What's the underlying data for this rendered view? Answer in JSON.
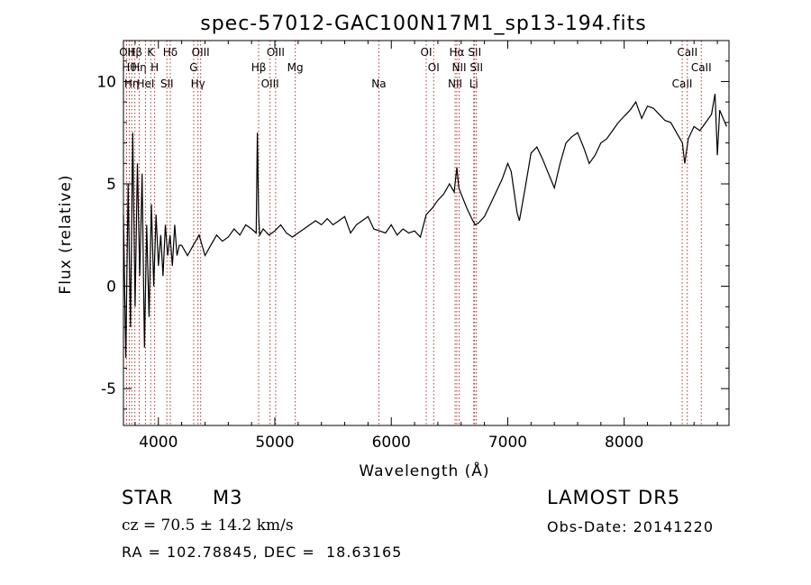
{
  "chart_data": {
    "type": "line",
    "title": "spec-57012-GAC100N17M1_sp13-194.fits",
    "xlabel": "Wavelength (Å)",
    "ylabel": "Flux (relative)",
    "xlim": [
      3700,
      8900
    ],
    "ylim": [
      -6.8,
      12.0
    ],
    "xticks": [
      4000,
      5000,
      6000,
      7000,
      8000
    ],
    "yticks": [
      -5,
      0,
      5,
      10
    ],
    "grid": false,
    "series": [
      {
        "x": [
          3700,
          3720,
          3740,
          3760,
          3780,
          3800,
          3820,
          3840,
          3860,
          3880,
          3900,
          3920,
          3940,
          3960,
          3980,
          4000,
          4020,
          4040,
          4060,
          4080,
          4100,
          4120,
          4140,
          4160,
          4180,
          4200,
          4250,
          4300,
          4350,
          4400,
          4450,
          4500,
          4550,
          4600,
          4650,
          4700,
          4750,
          4800,
          4840,
          4850,
          4861,
          4870,
          4900,
          4950,
          5000,
          5050,
          5100,
          5150,
          5200,
          5250,
          5300,
          5350,
          5400,
          5450,
          5500,
          5550,
          5600,
          5650,
          5700,
          5750,
          5800,
          5850,
          5900,
          5950,
          6000,
          6050,
          6100,
          6150,
          6200,
          6250,
          6300,
          6350,
          6400,
          6450,
          6500,
          6540,
          6563,
          6580,
          6600,
          6650,
          6700,
          6720,
          6750,
          6800,
          6850,
          6900,
          6950,
          7000,
          7030,
          7050,
          7080,
          7100,
          7150,
          7200,
          7250,
          7300,
          7350,
          7400,
          7450,
          7500,
          7550,
          7600,
          7650,
          7700,
          7750,
          7800,
          7850,
          7900,
          7950,
          8000,
          8050,
          8100,
          8150,
          8200,
          8250,
          8300,
          8350,
          8400,
          8450,
          8500,
          8520,
          8550,
          8600,
          8650,
          8700,
          8750,
          8780,
          8800,
          8820,
          8850,
          8880
        ],
        "y": [
          3.5,
          -3.5,
          5.0,
          -2.0,
          7.5,
          -1.0,
          6.0,
          0.5,
          5.5,
          -3.0,
          3.0,
          -1.5,
          4.0,
          0.0,
          3.5,
          1.0,
          2.5,
          0.5,
          3.0,
          1.5,
          2.5,
          1.0,
          3.0,
          1.5,
          2.0,
          2.0,
          1.5,
          2.0,
          2.5,
          1.5,
          2.0,
          2.5,
          2.2,
          2.4,
          2.8,
          2.5,
          3.0,
          2.8,
          2.6,
          7.5,
          3.5,
          2.5,
          2.8,
          2.5,
          2.7,
          3.0,
          2.6,
          2.4,
          2.6,
          2.8,
          3.0,
          3.2,
          3.0,
          3.3,
          3.0,
          3.2,
          3.4,
          2.6,
          3.0,
          3.2,
          3.4,
          2.8,
          2.7,
          2.6,
          3.0,
          2.5,
          2.8,
          2.6,
          2.7,
          2.4,
          3.5,
          3.8,
          4.2,
          4.5,
          5.0,
          4.6,
          5.8,
          4.8,
          4.5,
          3.8,
          3.2,
          3.0,
          3.1,
          3.4,
          4.0,
          4.6,
          5.2,
          6.0,
          5.6,
          4.8,
          3.6,
          3.2,
          4.8,
          6.5,
          6.8,
          6.2,
          5.5,
          4.8,
          6.0,
          7.0,
          7.3,
          7.5,
          6.8,
          6.0,
          6.4,
          7.0,
          7.2,
          7.6,
          8.0,
          8.3,
          8.6,
          9.0,
          8.2,
          8.8,
          8.7,
          8.4,
          8.1,
          8.0,
          7.5,
          7.0,
          6.0,
          7.2,
          7.8,
          7.6,
          8.0,
          8.4,
          9.4,
          6.4,
          8.6,
          8.2,
          7.8
        ]
      }
    ],
    "lines_top": [
      {
        "x": 3727,
        "label": "OII"
      },
      {
        "x": 3750,
        "label": "Hθ"
      },
      {
        "x": 3771,
        "label": "Hη"
      },
      {
        "x": 3798,
        "label": "Hβ"
      },
      {
        "x": 3835,
        "label": "Hη"
      },
      {
        "x": 3889,
        "label": "HeI"
      },
      {
        "x": 3934,
        "label": "K"
      },
      {
        "x": 3968,
        "label": "H"
      },
      {
        "x": 4073,
        "label": "SII"
      },
      {
        "x": 4102,
        "label": "Hδ"
      },
      {
        "x": 4303,
        "label": "G"
      },
      {
        "x": 4340,
        "label": "Hγ"
      },
      {
        "x": 4363,
        "label": "OIII"
      },
      {
        "x": 4861,
        "label": "Hβ"
      },
      {
        "x": 4959,
        "label": "OIII"
      },
      {
        "x": 5007,
        "label": "OIII"
      },
      {
        "x": 5175,
        "label": "Mg"
      },
      {
        "x": 5893,
        "label": "Na"
      },
      {
        "x": 6300,
        "label": "OI"
      },
      {
        "x": 6364,
        "label": "OI"
      },
      {
        "x": 6548,
        "label": "NII"
      },
      {
        "x": 6563,
        "label": "Hα"
      },
      {
        "x": 6583,
        "label": "NII"
      },
      {
        "x": 6708,
        "label": "Li"
      },
      {
        "x": 6716,
        "label": "SII"
      },
      {
        "x": 6731,
        "label": "SII"
      },
      {
        "x": 8498,
        "label": "CaII"
      },
      {
        "x": 8542,
        "label": "CaII"
      },
      {
        "x": 8662,
        "label": "CaII"
      }
    ]
  },
  "info": {
    "class_label": "STAR",
    "subclass": "M3",
    "survey": "LAMOST DR5",
    "cz": "cz = 70.5 ± 14.2 km/s",
    "obs_date": "Obs-Date: 20141220",
    "radec": "RA = 102.78845, DEC =  18.63165"
  },
  "colors": {
    "axis": "#000000",
    "line": "#000000",
    "marker": "#b03030"
  }
}
